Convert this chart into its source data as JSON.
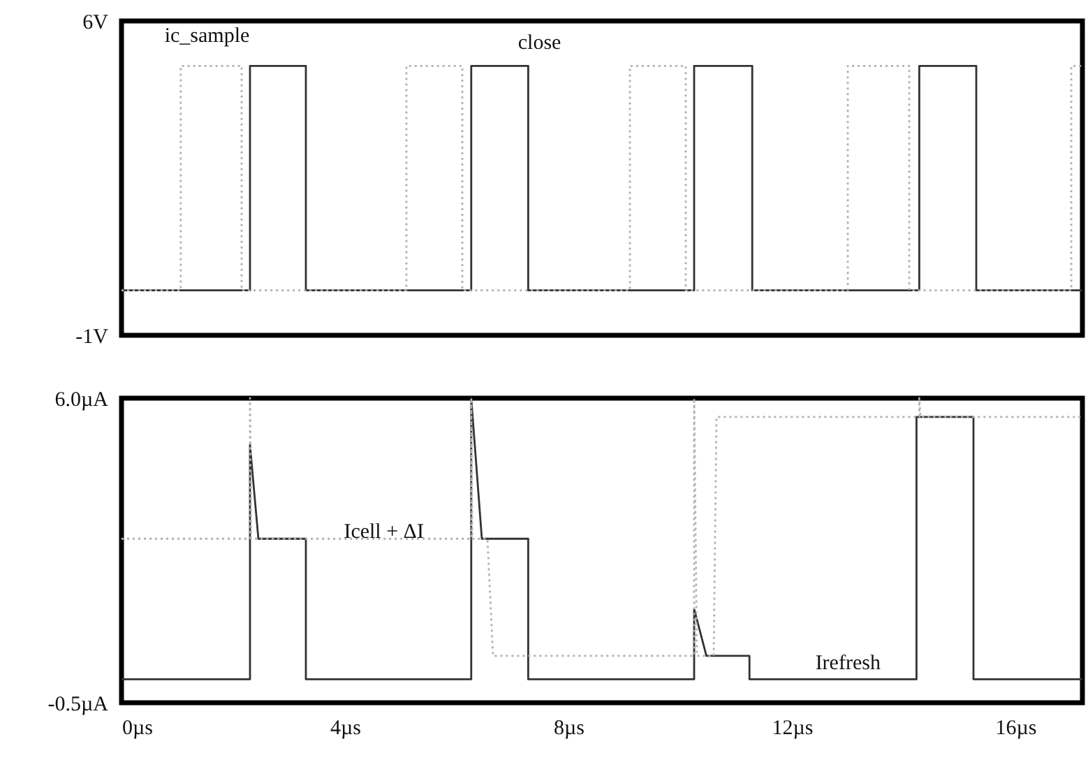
{
  "chart_data": [
    {
      "type": "line",
      "xlim": [
        0,
        17.2
      ],
      "ylim": [
        -1,
        6
      ],
      "yticks": [
        {
          "value": 6,
          "label": "6V"
        },
        {
          "value": -1,
          "label": "-1V"
        }
      ],
      "tick_labels": "y",
      "annotations": [
        "ic_sample",
        "close"
      ],
      "series": [
        {
          "color": "#333333",
          "x": [
            0,
            2.3,
            2.3,
            3.3,
            3.3,
            6.26,
            6.26,
            7.28,
            7.28,
            10.25,
            10.25,
            11.29,
            11.29,
            14.28,
            14.28,
            15.3,
            15.3,
            17.2
          ],
          "values": [
            0,
            0,
            5,
            5,
            0,
            0,
            5,
            5,
            0,
            0,
            5,
            5,
            0,
            0,
            5,
            5,
            0,
            0
          ]
        },
        {
          "color": "#b0b0b0",
          "line_style": "dotted",
          "x": [
            0,
            1.06,
            1.06,
            2.15,
            2.15,
            5.1,
            5.1,
            6.1,
            6.1,
            9.1,
            9.1,
            10.1,
            10.1,
            13.0,
            13.0,
            14.1,
            14.1,
            17.0,
            17.0,
            17.2
          ],
          "values": [
            0,
            0,
            5,
            5,
            0,
            0,
            5,
            5,
            0,
            0,
            5,
            5,
            0,
            0,
            5,
            5,
            0,
            0,
            5,
            5
          ]
        }
      ]
    },
    {
      "type": "line",
      "xlim": [
        0,
        17.2
      ],
      "ylim": [
        -0.5,
        6
      ],
      "yticks": [
        {
          "value": 6,
          "label": "6.0µA"
        },
        {
          "value": -0.5,
          "label": "-0.5µA"
        }
      ],
      "xticks": [
        {
          "value": 0,
          "label": "0µs"
        },
        {
          "value": 4,
          "label": "4µs"
        },
        {
          "value": 8,
          "label": "8µs"
        },
        {
          "value": 12,
          "label": "12µs"
        },
        {
          "value": 16,
          "label": "16µs"
        }
      ],
      "annotations": [
        "Icell + ΔI",
        "Irefresh"
      ],
      "series": [
        {
          "color": "#333333",
          "x": [
            0,
            2.3,
            2.3,
            2.45,
            3.3,
            3.3,
            6.26,
            6.26,
            6.45,
            7.28,
            7.28,
            10.25,
            10.25,
            10.47,
            11.24,
            11.24,
            14.23,
            14.23,
            15.25,
            15.25,
            17.2
          ],
          "values": [
            0,
            0,
            5.0,
            3.0,
            3.0,
            0,
            0,
            6.0,
            3.0,
            3.0,
            0,
            0,
            1.5,
            0.5,
            0.5,
            0,
            0,
            5.6,
            5.6,
            0,
            0
          ]
        },
        {
          "color": "#b0b0b0",
          "line_style": "dotted",
          "x": [
            0,
            2.3,
            2.3,
            2.32,
            6.26,
            6.26,
            6.28,
            6.55,
            6.65,
            10.25,
            10.25,
            10.3,
            10.6,
            10.65,
            14.28,
            14.28,
            14.3,
            17.2
          ],
          "values": [
            3.0,
            3.0,
            6.0,
            3.0,
            3.0,
            6.0,
            3.0,
            3.0,
            0.5,
            0.5,
            6.0,
            0.5,
            0.5,
            5.6,
            5.6,
            6.0,
            5.6,
            5.6
          ]
        }
      ]
    }
  ]
}
